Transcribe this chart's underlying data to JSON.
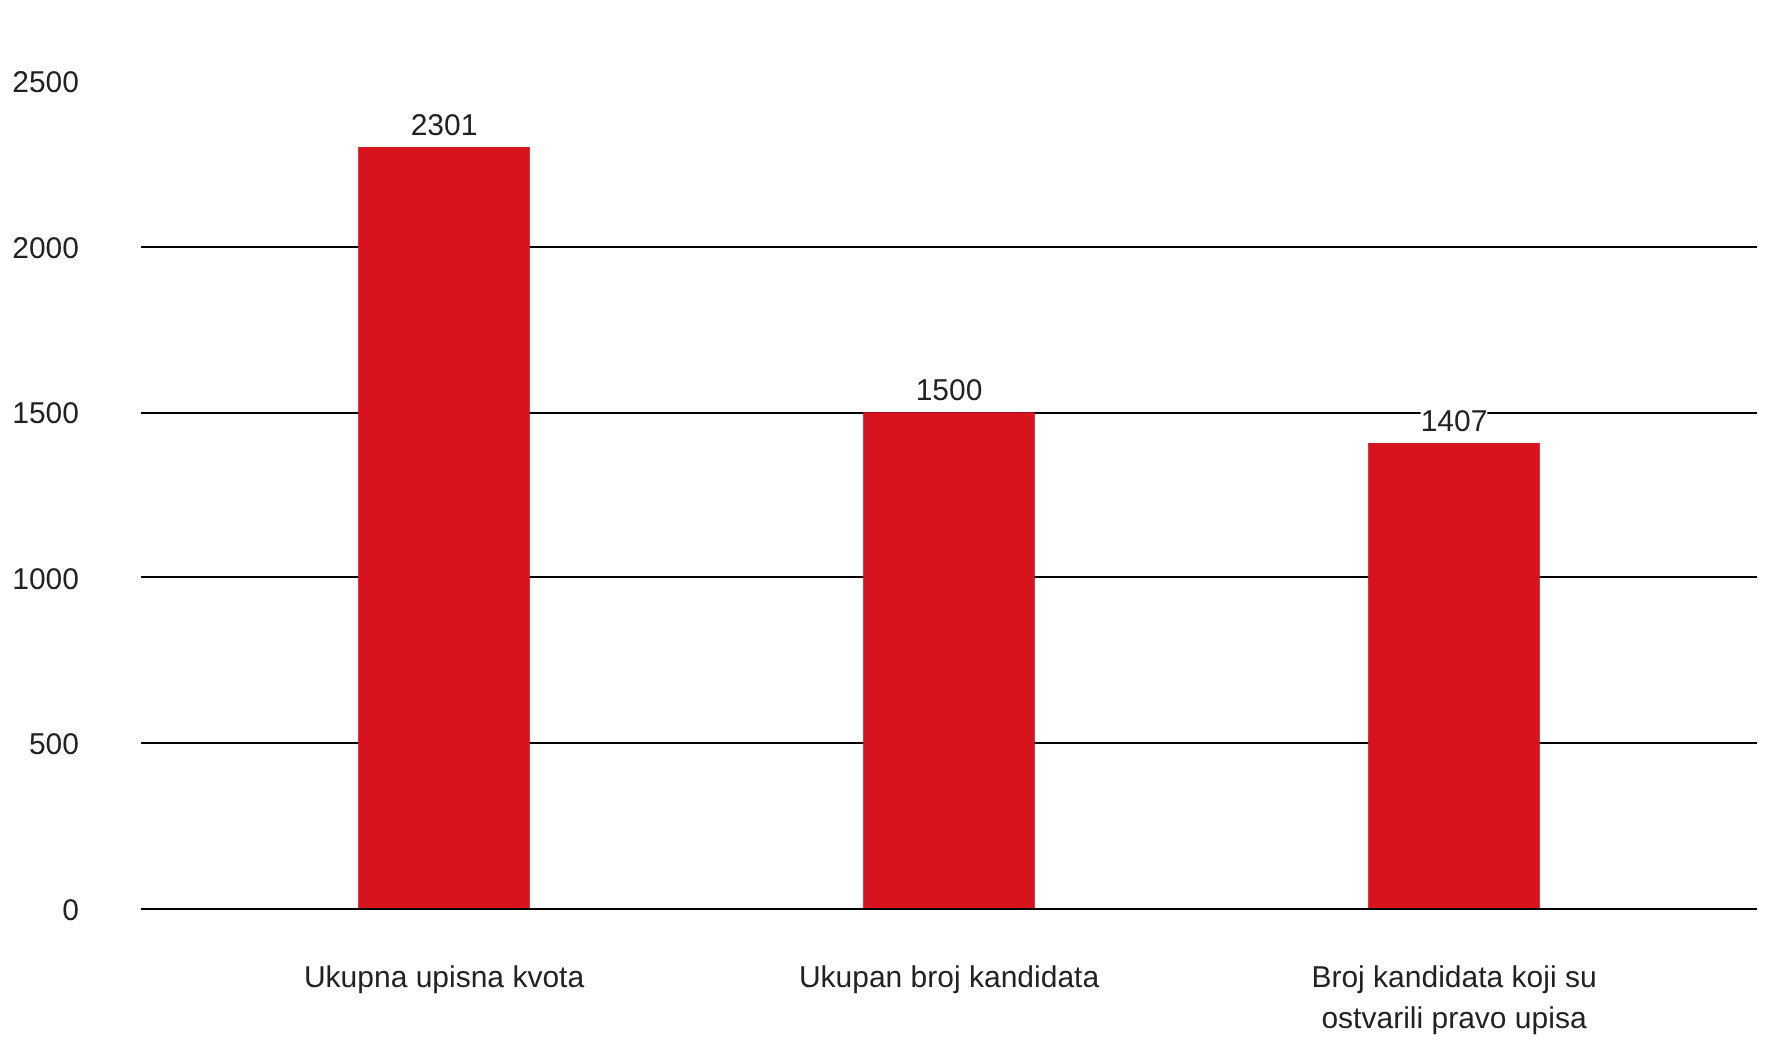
{
  "chart_data": {
    "type": "bar",
    "categories": [
      "Ukupna upisna kvota",
      "Ukupan broj kandidata",
      "Broj kandidata koji su ostvarili pravo upisa"
    ],
    "values": [
      2301,
      1500,
      1407
    ],
    "color": "#d7141e",
    "ylim": [
      0,
      2500
    ],
    "yticks": [
      0,
      500,
      1000,
      1500,
      2000,
      2500
    ],
    "grid": "y",
    "data_labels": true
  }
}
